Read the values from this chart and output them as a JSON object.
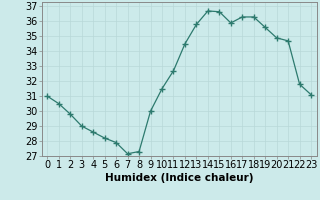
{
  "x": [
    0,
    1,
    2,
    3,
    4,
    5,
    6,
    7,
    8,
    9,
    10,
    11,
    12,
    13,
    14,
    15,
    16,
    17,
    18,
    19,
    20,
    21,
    22,
    23
  ],
  "y": [
    31,
    30.5,
    29.8,
    29,
    28.6,
    28.2,
    27.9,
    27.15,
    27.3,
    30.0,
    31.5,
    32.7,
    34.5,
    35.8,
    36.7,
    36.65,
    35.9,
    36.3,
    36.3,
    35.6,
    34.9,
    34.7,
    31.8,
    31.1
  ],
  "line_color": "#2d7a6e",
  "marker": "+",
  "marker_size": 4,
  "bg_color": "#cceaea",
  "grid_color": "#b8d8d8",
  "xlabel": "Humidex (Indice chaleur)",
  "ylabel_ticks": [
    27,
    28,
    29,
    30,
    31,
    32,
    33,
    34,
    35,
    36,
    37
  ],
  "xlim": [
    -0.5,
    23.5
  ],
  "ylim": [
    27,
    37.3
  ],
  "xlabel_fontsize": 7.5,
  "tick_fontsize": 7,
  "spine_color": "#888888"
}
